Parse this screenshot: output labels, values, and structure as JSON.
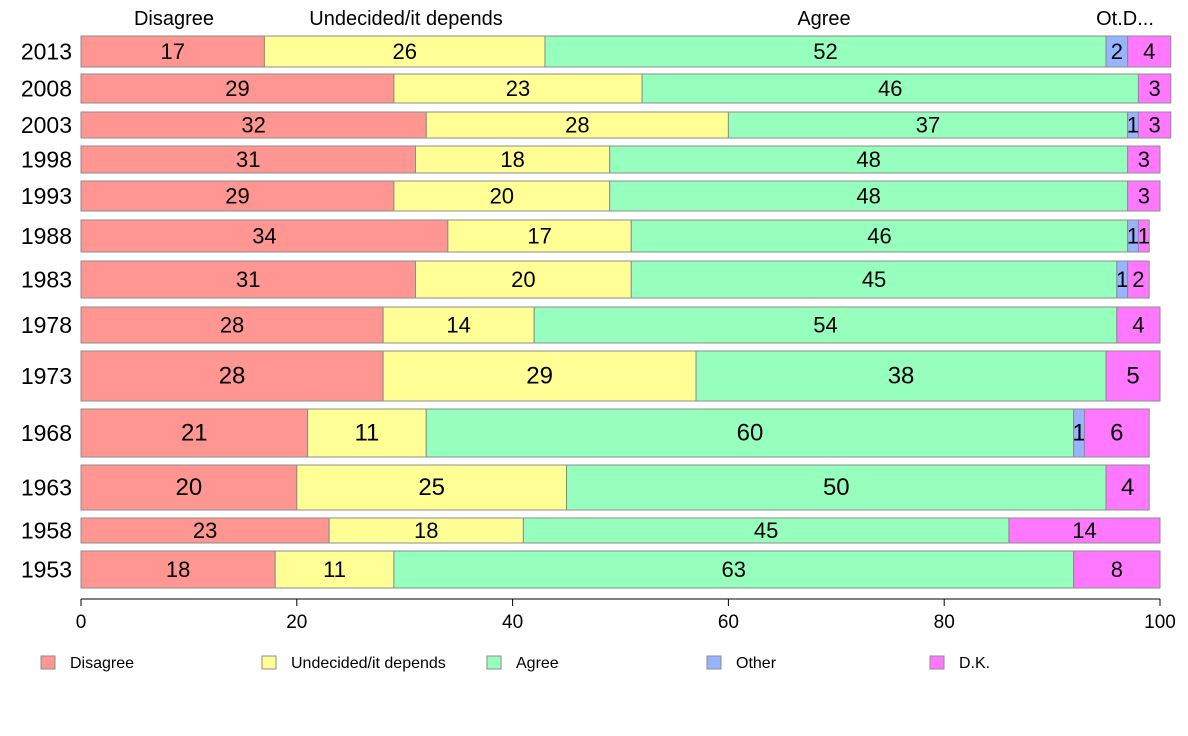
{
  "chart_data": {
    "type": "bar",
    "orientation": "horizontal",
    "stacked": true,
    "xlim": [
      0,
      100
    ],
    "xticks": [
      "0",
      "20",
      "40",
      "60",
      "80",
      "100"
    ],
    "top_labels": [
      "Disagree",
      "Undecided/it depends",
      "Agree",
      "Ot.D..."
    ],
    "categories": [
      "2013",
      "2008",
      "2003",
      "1998",
      "1993",
      "1988",
      "1983",
      "1978",
      "1973",
      "1968",
      "1963",
      "1958",
      "1953"
    ],
    "series": [
      {
        "name": "Disagree",
        "color": "#ff9691",
        "values": [
          17,
          29,
          32,
          31,
          29,
          34,
          31,
          28,
          28,
          21,
          20,
          23,
          18
        ]
      },
      {
        "name": "Undecided/it depends",
        "color": "#ffff96",
        "values": [
          26,
          23,
          28,
          18,
          20,
          17,
          20,
          14,
          29,
          11,
          25,
          18,
          11
        ]
      },
      {
        "name": "Agree",
        "color": "#96ffbe",
        "values": [
          52,
          46,
          37,
          48,
          48,
          46,
          45,
          54,
          38,
          60,
          50,
          45,
          63
        ]
      },
      {
        "name": "Other",
        "color": "#96b4ff",
        "values": [
          2,
          0,
          1,
          0,
          0,
          1,
          1,
          0,
          0,
          1,
          0,
          0,
          0
        ]
      },
      {
        "name": "D.K.",
        "color": "#ff78ff",
        "values": [
          4,
          3,
          3,
          3,
          3,
          1,
          2,
          4,
          5,
          6,
          4,
          14,
          8
        ]
      }
    ],
    "bar_labels": [
      [
        "17",
        "26",
        "52",
        "2",
        "4"
      ],
      [
        "29",
        "23",
        "46",
        "",
        "3"
      ],
      [
        "32",
        "28",
        "37",
        "1",
        "3"
      ],
      [
        "31",
        "18",
        "48",
        "",
        "3"
      ],
      [
        "29",
        "20",
        "48",
        "",
        "3"
      ],
      [
        "34",
        "17",
        "46",
        "1",
        "1"
      ],
      [
        "31",
        "20",
        "45",
        "1",
        "2"
      ],
      [
        "28",
        "14",
        "54",
        "",
        "4"
      ],
      [
        "28",
        "29",
        "38",
        "",
        "5"
      ],
      [
        "21",
        "11",
        "60",
        "1",
        "6"
      ],
      [
        "20",
        "25",
        "50",
        "",
        "4"
      ],
      [
        "23",
        "18",
        "45",
        "",
        "14"
      ],
      [
        "18",
        "11",
        "63",
        "",
        "8"
      ]
    ],
    "legend": {
      "position": "bottom",
      "entries": [
        "Disagree",
        "Undecided/it depends",
        "Agree",
        "Other",
        "D.K."
      ]
    }
  }
}
